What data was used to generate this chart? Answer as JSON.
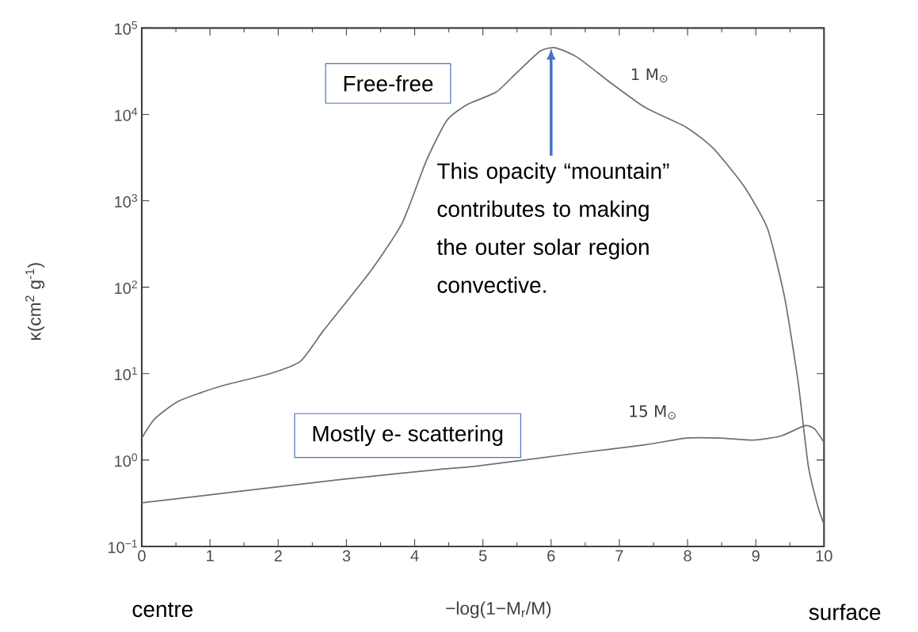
{
  "chart_data": {
    "type": "line",
    "xlabel": "−log(1−M$_{r}$/M)",
    "ylabel": "κ(cm$^{2}$ g$^{-1}$)",
    "log": "y",
    "grid": false,
    "marker": "none",
    "xlim": [
      0,
      10
    ],
    "ylim": [
      0.1,
      100000
    ],
    "xticks": [
      0,
      1,
      2,
      3,
      4,
      5,
      6,
      7,
      8,
      9,
      10
    ],
    "yticks": [
      {
        "value": 0.1,
        "label": "10$^{−1}$"
      },
      {
        "value": 1,
        "label": "10$^{0}$"
      },
      {
        "value": 10,
        "label": "10$^{1}$"
      },
      {
        "value": 100,
        "label": "10$^{2}$"
      },
      {
        "value": 1000,
        "label": "10$^{3}$"
      },
      {
        "value": 10000,
        "label": "10$^{4}$"
      },
      {
        "value": 100000,
        "label": "10$^{5}$"
      }
    ],
    "series": [
      {
        "name": "1 M$_{⊙}$",
        "color": "#707070",
        "x": [
          0,
          0.19,
          0.54,
          1.14,
          1.88,
          2.33,
          2.67,
          3.37,
          3.82,
          4.17,
          4.47,
          4.77,
          5.19,
          5.49,
          5.84,
          6.06,
          6.38,
          6.88,
          7.38,
          7.98,
          8.37,
          8.82,
          9.17,
          9.42,
          9.62,
          9.77,
          9.91,
          10
        ],
        "values": [
          1.8,
          3.0,
          4.8,
          7.1,
          10,
          14,
          32,
          160,
          560,
          2900,
          8500,
          13000,
          18000,
          30000,
          54000,
          59000,
          46000,
          23000,
          12000,
          7100,
          4100,
          1500,
          480,
          78,
          8.1,
          0.85,
          0.29,
          0.18
        ]
      },
      {
        "name": "15 M$_{⊙}$",
        "color": "#707070",
        "x": [
          0,
          1.38,
          2.87,
          4.37,
          4.9,
          6.38,
          7.38,
          7.98,
          8.47,
          8.97,
          9.37,
          9.72,
          9.86,
          10
        ],
        "values": [
          0.32,
          0.43,
          0.59,
          0.78,
          0.85,
          1.2,
          1.5,
          1.8,
          1.8,
          1.7,
          1.9,
          2.5,
          2.3,
          1.6
        ]
      }
    ],
    "annotations": [
      "Free-free",
      "This opacity “mountain” contributes to making the outer solar region convective.",
      "Mostly e- scattering",
      "centre",
      "surface"
    ]
  }
}
